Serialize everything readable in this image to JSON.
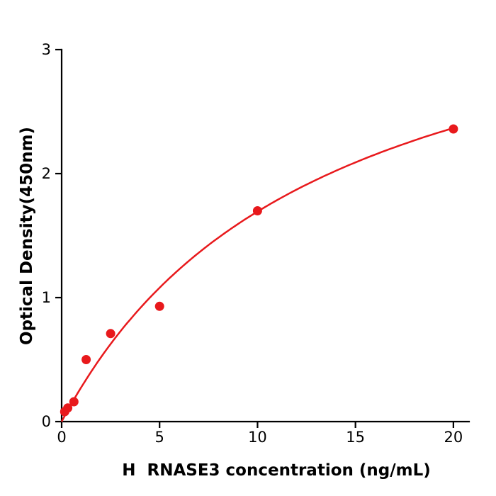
{
  "chart_data": {
    "type": "scatter",
    "title": "",
    "xlabel": "H  RNASE3 concentration (ng/mL)",
    "ylabel": "Optical Density(450nm)",
    "x": [
      0.156,
      0.3125,
      0.625,
      1.25,
      2.5,
      5,
      10,
      20
    ],
    "y": [
      0.08,
      0.11,
      0.16,
      0.5,
      0.71,
      0.93,
      1.7,
      2.36
    ],
    "xticks": [
      0,
      5,
      10,
      15,
      20
    ],
    "yticks": [
      0,
      1,
      2,
      3
    ],
    "xlim": [
      0,
      20.8
    ],
    "ylim": [
      0,
      3.0
    ],
    "grid": false,
    "legend": "none",
    "point_color": "#e8191c",
    "curve_color": "#e8191c",
    "axis_color": "#000000",
    "fit": {
      "type": "michaelis_menten",
      "vmax": 3.93,
      "km": 13.2
    }
  }
}
